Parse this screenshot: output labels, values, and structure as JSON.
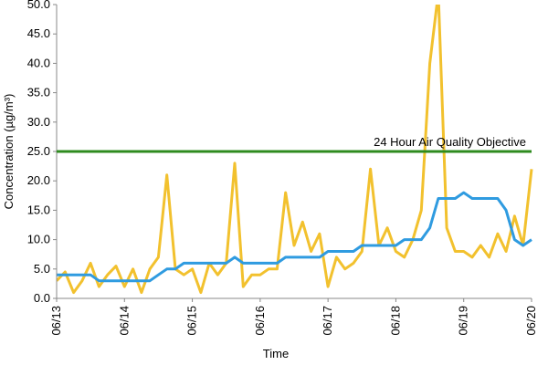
{
  "chart_data": {
    "type": "line",
    "x_label": "Time",
    "y_label": "Concentration (µg/m³)",
    "categories": [
      "06/13",
      null,
      null,
      null,
      null,
      null,
      null,
      null,
      "06/14",
      null,
      null,
      null,
      null,
      null,
      null,
      null,
      "06/15",
      null,
      null,
      null,
      null,
      null,
      null,
      null,
      "06/16",
      null,
      null,
      null,
      null,
      null,
      null,
      null,
      "06/17",
      null,
      null,
      null,
      null,
      null,
      null,
      null,
      "06/18",
      null,
      null,
      null,
      null,
      null,
      null,
      null,
      "06/19",
      null,
      null,
      null,
      null,
      null,
      null,
      null,
      "06/20"
    ],
    "series": [
      {
        "color": "#f2c12e",
        "values": [
          3,
          4.5,
          1,
          3,
          6,
          2,
          4,
          5.5,
          2,
          5,
          1,
          5,
          7,
          21,
          5,
          4,
          5,
          1,
          6,
          4,
          6,
          23,
          2,
          4,
          4,
          5,
          5,
          18,
          9,
          13,
          8,
          11,
          2,
          7,
          5,
          6,
          8,
          22,
          9,
          12,
          8,
          7,
          10,
          15,
          40,
          52,
          12,
          8,
          8,
          7,
          9,
          7,
          11,
          8,
          14,
          9,
          22
        ]
      },
      {
        "color": "#2f9be0",
        "values": [
          4,
          4,
          4,
          4,
          4,
          3,
          3,
          3,
          3,
          3,
          3,
          3,
          4,
          5,
          5,
          6,
          6,
          6,
          6,
          6,
          6,
          7,
          6,
          6,
          6,
          6,
          6,
          7,
          7,
          7,
          7,
          7,
          8,
          8,
          8,
          8,
          9,
          9,
          9,
          9,
          9,
          10,
          10,
          10,
          12,
          17,
          17,
          17,
          18,
          17,
          17,
          17,
          17,
          15,
          10,
          9,
          10
        ]
      }
    ],
    "reference_line": {
      "value": 25,
      "label": "24 Hour Air Quality Objective",
      "color": "#2e8b1e"
    },
    "ylim": [
      0,
      50
    ],
    "yticks": [
      {
        "value": 0,
        "label": "0.0"
      },
      {
        "value": 5,
        "label": "5.0"
      },
      {
        "value": 10,
        "label": "10.0"
      },
      {
        "value": 15,
        "label": "15.0"
      },
      {
        "value": 20,
        "label": "20.0"
      },
      {
        "value": 25,
        "label": "25.0"
      },
      {
        "value": 30,
        "label": "30.0"
      },
      {
        "value": 35,
        "label": "35.0"
      },
      {
        "value": 40,
        "label": "40.0"
      },
      {
        "value": 45,
        "label": "45.0"
      },
      {
        "value": 50,
        "label": "50.0"
      }
    ]
  }
}
